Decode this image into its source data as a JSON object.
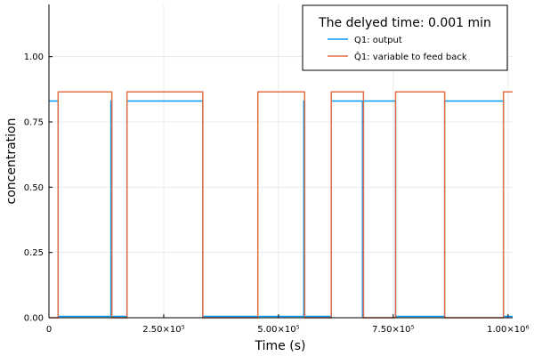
{
  "chart_data": {
    "type": "line",
    "title": "",
    "xlabel": "Time (s)",
    "ylabel": "concentration",
    "xlim": [
      0,
      1010000
    ],
    "ylim": [
      0,
      1.2
    ],
    "grid": true,
    "legend_position": "top-right",
    "legend_title": "The delyed time: 0.001 min",
    "x_ticks": [
      {
        "value": 0,
        "label": "0"
      },
      {
        "value": 250000,
        "label": "2.50×10⁵"
      },
      {
        "value": 500000,
        "label": "5.00×10⁵"
      },
      {
        "value": 750000,
        "label": "7.50×10⁵"
      },
      {
        "value": 1000000,
        "label": "1.00×10⁶"
      }
    ],
    "y_ticks": [
      {
        "value": 0.0,
        "label": "0.00"
      },
      {
        "value": 0.25,
        "label": "0.25"
      },
      {
        "value": 0.5,
        "label": "0.50"
      },
      {
        "value": 0.75,
        "label": "0.75"
      },
      {
        "value": 1.0,
        "label": "1.00"
      }
    ],
    "series": [
      {
        "name": "Q1: output",
        "color": "#009af9",
        "x": [
          0,
          20000,
          20000,
          135000,
          135000,
          137000,
          137000,
          170000,
          170000,
          335000,
          335000,
          337000,
          337000,
          455000,
          455000,
          555000,
          555000,
          557000,
          557000,
          615000,
          615000,
          683000,
          683000,
          685000,
          685000,
          755000,
          755000,
          862000,
          862000,
          990000,
          990000,
          1010000
        ],
        "y": [
          0.83,
          0.83,
          0.005,
          0.005,
          0.83,
          0.83,
          0.005,
          0.005,
          0.83,
          0.83,
          0.005,
          0.005,
          0.005,
          0.005,
          0.005,
          0.005,
          0.83,
          0.83,
          0.005,
          0.005,
          0.83,
          0.83,
          0.005,
          0.005,
          0.83,
          0.83,
          0.005,
          0.005,
          0.83,
          0.83,
          0.005,
          0.005
        ]
      },
      {
        "name": "Q̂1: variable to feed back",
        "color": "#e26f46",
        "x": [
          0,
          20000,
          20000,
          137000,
          137000,
          170000,
          170000,
          335000,
          335000,
          455000,
          455000,
          557000,
          557000,
          615000,
          615000,
          685000,
          685000,
          755000,
          755000,
          862000,
          862000,
          990000,
          990000,
          1010000
        ],
        "y": [
          0.0,
          0.0,
          0.865,
          0.865,
          0.0,
          0.0,
          0.865,
          0.865,
          0.0,
          0.0,
          0.865,
          0.865,
          0.0,
          0.0,
          0.865,
          0.865,
          0.0,
          0.0,
          0.865,
          0.865,
          0.0,
          0.0,
          0.865,
          0.865
        ]
      }
    ]
  }
}
